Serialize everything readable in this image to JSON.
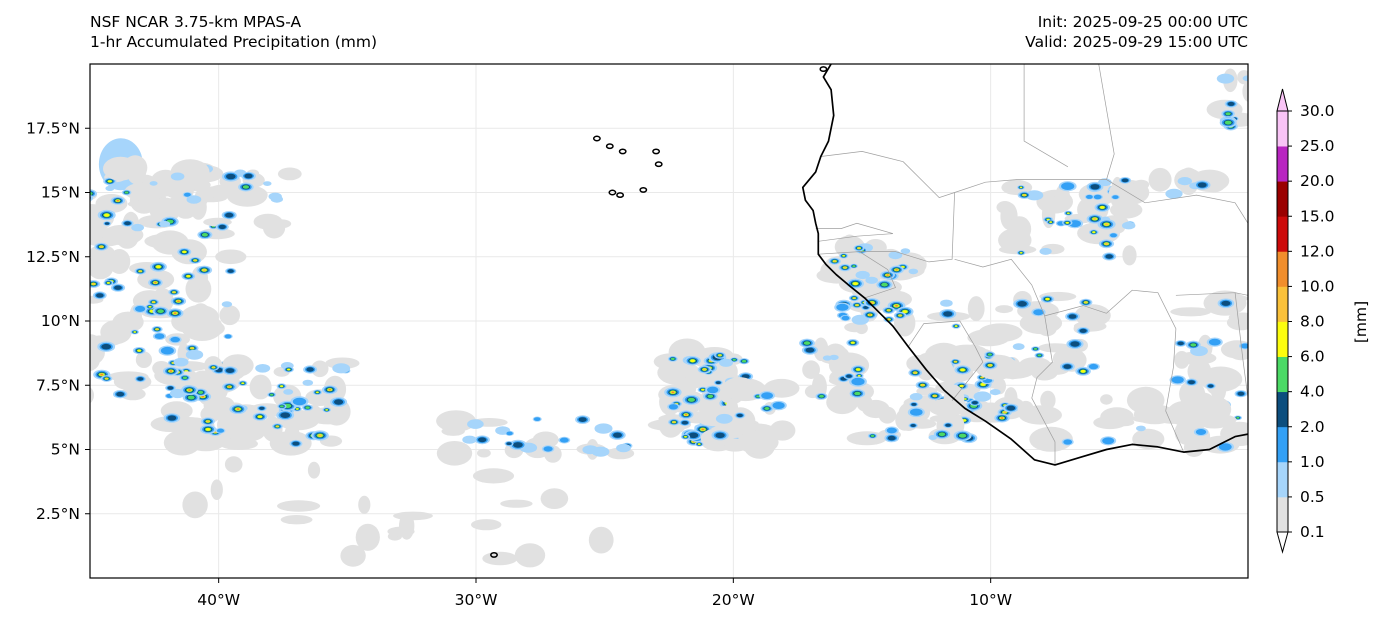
{
  "header": {
    "model_name": "NSF NCAR 3.75-km MPAS-A",
    "field_name": "1-hr Accumulated Precipitation (mm)",
    "init_time": "Init: 2025-09-25 00:00 UTC",
    "valid_time": "Valid: 2025-09-29 15:00 UTC"
  },
  "map": {
    "extent": {
      "lon": [
        -45,
        0
      ],
      "lat": [
        0,
        20
      ]
    },
    "lat_ticks": [
      {
        "value": 17.5,
        "label": "17.5°N"
      },
      {
        "value": 15,
        "label": "15°N"
      },
      {
        "value": 12.5,
        "label": "12.5°N"
      },
      {
        "value": 10,
        "label": "10°N"
      },
      {
        "value": 7.5,
        "label": "7.5°N"
      },
      {
        "value": 5,
        "label": "5°N"
      },
      {
        "value": 2.5,
        "label": "2.5°N"
      }
    ],
    "lon_ticks": [
      {
        "value": -40,
        "label": "40°W"
      },
      {
        "value": -30,
        "label": "30°W"
      },
      {
        "value": -20,
        "label": "20°W"
      },
      {
        "value": -10,
        "label": "10°W"
      }
    ],
    "coastline": [
      [
        -16.2,
        20.0
      ],
      [
        -16.5,
        19.5
      ],
      [
        -16.2,
        19.0
      ],
      [
        -16.1,
        18.0
      ],
      [
        -16.3,
        17.0
      ],
      [
        -16.6,
        16.4
      ],
      [
        -16.8,
        15.8
      ],
      [
        -17.3,
        15.2
      ],
      [
        -17.2,
        14.7
      ],
      [
        -16.9,
        14.3
      ],
      [
        -16.8,
        13.8
      ],
      [
        -16.7,
        13.4
      ],
      [
        -16.7,
        12.6
      ],
      [
        -16.4,
        12.2
      ],
      [
        -16.0,
        11.8
      ],
      [
        -15.4,
        11.3
      ],
      [
        -14.9,
        10.9
      ],
      [
        -14.4,
        10.4
      ],
      [
        -13.8,
        9.8
      ],
      [
        -13.2,
        9.0
      ],
      [
        -12.5,
        8.1
      ],
      [
        -11.8,
        7.3
      ],
      [
        -11.0,
        6.6
      ],
      [
        -10.2,
        6.1
      ],
      [
        -9.2,
        5.4
      ],
      [
        -8.3,
        4.6
      ],
      [
        -7.5,
        4.4
      ],
      [
        -6.5,
        4.7
      ],
      [
        -5.5,
        5.0
      ],
      [
        -4.5,
        5.2
      ],
      [
        -3.5,
        5.1
      ],
      [
        -2.5,
        4.9
      ],
      [
        -1.5,
        5.0
      ],
      [
        -0.5,
        5.5
      ],
      [
        0.0,
        5.6
      ]
    ],
    "islands": [
      [
        -25.3,
        17.1
      ],
      [
        -24.8,
        16.8
      ],
      [
        -24.3,
        16.6
      ],
      [
        -23.0,
        16.6
      ],
      [
        -22.9,
        16.1
      ],
      [
        -23.5,
        15.1
      ],
      [
        -24.4,
        14.9
      ],
      [
        -24.7,
        15.0
      ],
      [
        -29.3,
        0.9
      ],
      [
        -16.5,
        19.8
      ]
    ],
    "borders": [
      [
        [
          -16.6,
          16.4
        ],
        [
          -15.0,
          16.6
        ],
        [
          -13.4,
          16.2
        ],
        [
          -12.0,
          14.8
        ],
        [
          -11.4,
          15.0
        ],
        [
          -11.5,
          12.4
        ],
        [
          -12.4,
          12.3
        ],
        [
          -13.7,
          12.7
        ],
        [
          -15.1,
          12.7
        ],
        [
          -16.7,
          12.6
        ]
      ],
      [
        [
          -16.8,
          13.6
        ],
        [
          -15.8,
          13.6
        ],
        [
          -15.2,
          13.8
        ],
        [
          -13.8,
          13.4
        ],
        [
          -15.2,
          13.3
        ],
        [
          -16.7,
          13.1
        ]
      ],
      [
        [
          -15.1,
          12.7
        ],
        [
          -14.0,
          12.0
        ],
        [
          -13.7,
          11.3
        ],
        [
          -14.9,
          10.9
        ]
      ],
      [
        [
          -13.2,
          9.0
        ],
        [
          -12.6,
          9.9
        ],
        [
          -11.2,
          10.0
        ],
        [
          -10.6,
          9.0
        ],
        [
          -10.3,
          8.4
        ],
        [
          -11.5,
          6.9
        ]
      ],
      [
        [
          -11.4,
          12.4
        ],
        [
          -10.3,
          12.1
        ],
        [
          -9.2,
          12.4
        ],
        [
          -8.4,
          11.4
        ],
        [
          -7.9,
          10.2
        ],
        [
          -7.6,
          8.4
        ],
        [
          -8.2,
          7.8
        ],
        [
          -8.4,
          7.0
        ],
        [
          -7.5,
          5.3
        ],
        [
          -7.5,
          4.4
        ]
      ],
      [
        [
          -11.4,
          15.0
        ],
        [
          -10.2,
          15.4
        ],
        [
          -9.0,
          15.5
        ],
        [
          -5.5,
          15.5
        ],
        [
          -5.2,
          16.5
        ],
        [
          -5.8,
          20.0
        ]
      ],
      [
        [
          -8.7,
          20.0
        ],
        [
          -8.7,
          17.0
        ],
        [
          -7.0,
          16.0
        ]
      ],
      [
        [
          -5.5,
          10.3
        ],
        [
          -4.5,
          11.2
        ],
        [
          -3.5,
          11.1
        ],
        [
          -2.8,
          9.7
        ],
        [
          -2.9,
          8.2
        ],
        [
          -3.2,
          6.5
        ],
        [
          -2.5,
          4.9
        ]
      ],
      [
        [
          -5.5,
          10.3
        ],
        [
          -6.4,
          10.6
        ],
        [
          -7.9,
          10.2
        ]
      ],
      [
        [
          -5.5,
          15.5
        ],
        [
          -4.0,
          14.6
        ],
        [
          -2.0,
          14.9
        ],
        [
          -0.5,
          14.6
        ],
        [
          0.0,
          13.8
        ]
      ],
      [
        [
          -2.8,
          11.0
        ],
        [
          -0.5,
          11.1
        ],
        [
          0.0,
          11.0
        ]
      ],
      [
        [
          -0.5,
          11.1
        ],
        [
          -0.2,
          8.5
        ],
        [
          0.0,
          7.0
        ]
      ]
    ]
  },
  "colorbar": {
    "label": "[mm]",
    "levels": [
      "0.1",
      "0.5",
      "1.0",
      "2.0",
      "4.0",
      "6.0",
      "8.0",
      "10.0",
      "12.0",
      "15.0",
      "20.0",
      "25.0",
      "30.0"
    ],
    "colors": [
      "#e1e1e1",
      "#a6d5fb",
      "#33a0f5",
      "#0c4e7e",
      "#4bd965",
      "#fcfd0e",
      "#fac13a",
      "#f18e2c",
      "#cc0a0a",
      "#9a0000",
      "#b825c0",
      "#f9c4f6"
    ],
    "under_color": "#ffffff",
    "over_color": "#f9c4f6"
  },
  "colors": {
    "coastline": "#000000",
    "border": "#9e9e9e",
    "gridline": "#e9e9e9",
    "frame": "#000000"
  }
}
